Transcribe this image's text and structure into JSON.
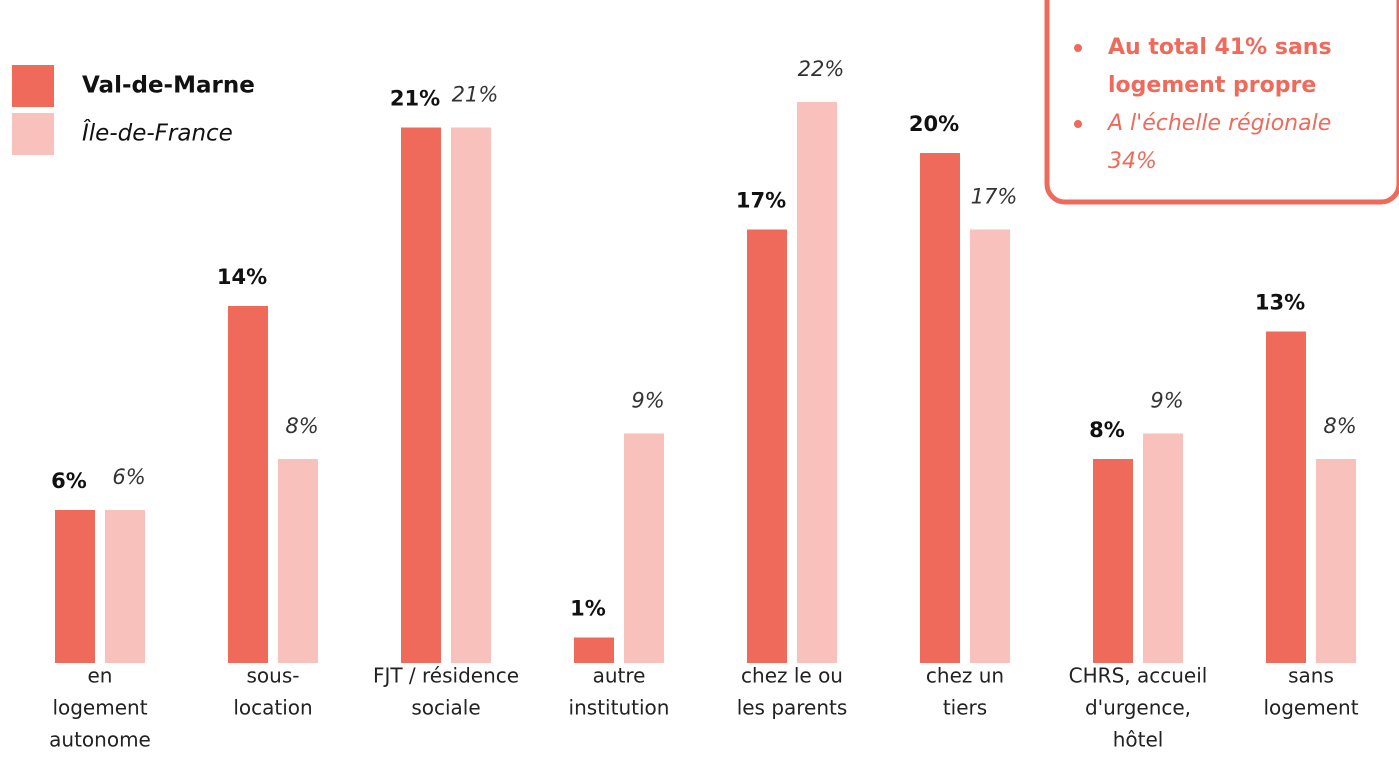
{
  "chart_data": {
    "type": "bar",
    "categories": [
      [
        "en",
        "logement",
        "autonome"
      ],
      [
        "sous-",
        "location"
      ],
      [
        "FJT / résidence",
        "sociale"
      ],
      [
        "autre",
        "institution"
      ],
      [
        "chez le ou",
        "les parents"
      ],
      [
        "chez un",
        "tiers"
      ],
      [
        "CHRS, accueil",
        "d'urgence,",
        "hôtel"
      ],
      [
        "sans",
        "logement"
      ]
    ],
    "series": [
      {
        "name": "Val-de-Marne",
        "color": "#ef6a5a",
        "values": [
          6,
          14,
          21,
          1,
          17,
          20,
          8,
          13
        ],
        "value_labels": [
          "6%",
          "14%",
          "21%",
          "1%",
          "17%",
          "20%",
          "8%",
          "13%"
        ]
      },
      {
        "name": "Île-de-France",
        "color": "#f8c1bb",
        "values": [
          6,
          8,
          21,
          9,
          22,
          17,
          9,
          8
        ],
        "value_labels": [
          "6%",
          "8%",
          "21%",
          "9%",
          "22%",
          "17%",
          "9%",
          "8%"
        ]
      }
    ],
    "annotations": [
      [
        "Au total 41% sans",
        "logement propre"
      ],
      [
        "A l'échelle régionale",
        "34%"
      ]
    ],
    "legend": "upper left"
  }
}
